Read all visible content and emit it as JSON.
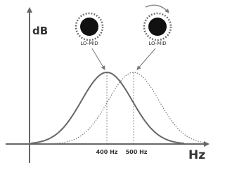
{
  "axes": {
    "y_label": "dB",
    "x_label": "Hz"
  },
  "knobs": [
    {
      "label": "LO-MID"
    },
    {
      "label": "LO-MID"
    }
  ],
  "markers": [
    {
      "label": "400 Hz"
    },
    {
      "label": "500 Hz"
    }
  ]
}
